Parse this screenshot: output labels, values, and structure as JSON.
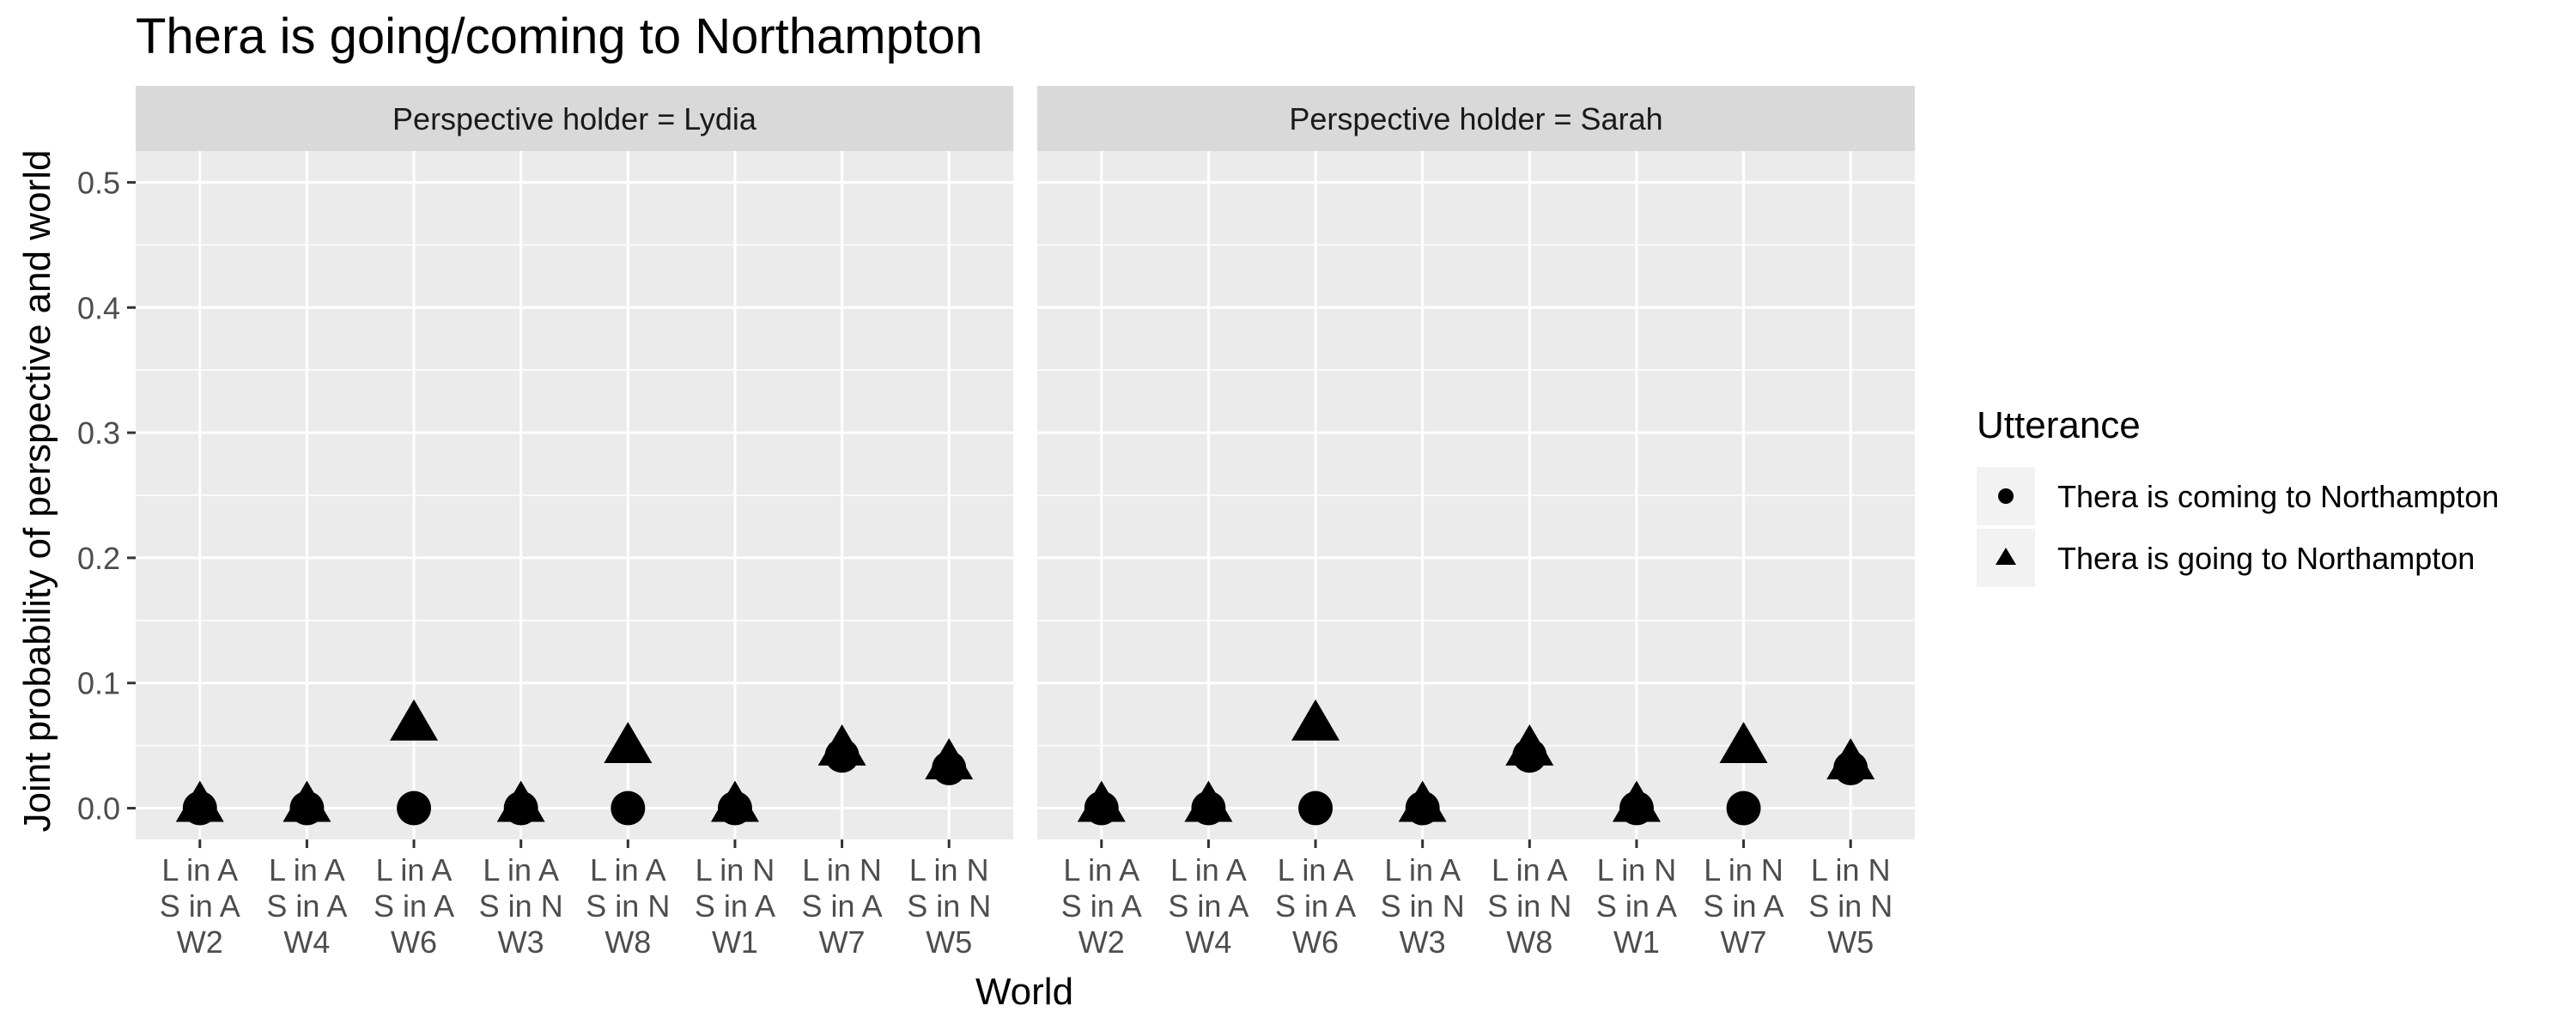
{
  "chart_data": {
    "type": "scatter",
    "title": "Thera is going/coming to Northampton",
    "xlabel": "World",
    "ylabel": "Joint probability of perspective and world",
    "ylim": [
      -0.025,
      0.525
    ],
    "yticks": [
      0.0,
      0.1,
      0.2,
      0.3,
      0.4,
      0.5
    ],
    "ytick_labels": [
      "0.0",
      "0.1",
      "0.2",
      "0.3",
      "0.4",
      "0.5"
    ],
    "grid": true,
    "categories": [
      [
        "L in A",
        "S in A",
        "W2"
      ],
      [
        "L in A",
        "S in A",
        "W4"
      ],
      [
        "L in A",
        "S in A",
        "W6"
      ],
      [
        "L in A",
        "S in N",
        "W3"
      ],
      [
        "L in A",
        "S in N",
        "W8"
      ],
      [
        "L in N",
        "S in A",
        "W1"
      ],
      [
        "L in N",
        "S in A",
        "W7"
      ],
      [
        "L in N",
        "S in N",
        "W5"
      ]
    ],
    "legend": {
      "title": "Utterance",
      "position": "right",
      "entries": [
        {
          "label": "Thera is coming to Northampton",
          "shape": "circle"
        },
        {
          "label": "Thera is going to Northampton",
          "shape": "triangle"
        }
      ]
    },
    "panels": [
      {
        "label": "Perspective holder = Lydia",
        "series": [
          {
            "name": "Thera is coming to Northampton",
            "shape": "circle",
            "values": [
              0.0,
              0.0,
              0.0,
              0.0,
              0.0,
              0.0,
              0.042,
              0.032
            ]
          },
          {
            "name": "Thera is going to Northampton",
            "shape": "triangle",
            "values": [
              0.0,
              0.0,
              0.065,
              0.0,
              0.047,
              0.0,
              0.045,
              0.034
            ]
          }
        ]
      },
      {
        "label": "Perspective holder = Sarah",
        "series": [
          {
            "name": "Thera is coming to Northampton",
            "shape": "circle",
            "values": [
              0.0,
              0.0,
              0.0,
              0.0,
              0.042,
              0.0,
              0.0,
              0.032
            ]
          },
          {
            "name": "Thera is going to Northampton",
            "shape": "triangle",
            "values": [
              0.0,
              0.0,
              0.065,
              0.0,
              0.045,
              0.0,
              0.047,
              0.034
            ]
          }
        ]
      }
    ]
  }
}
